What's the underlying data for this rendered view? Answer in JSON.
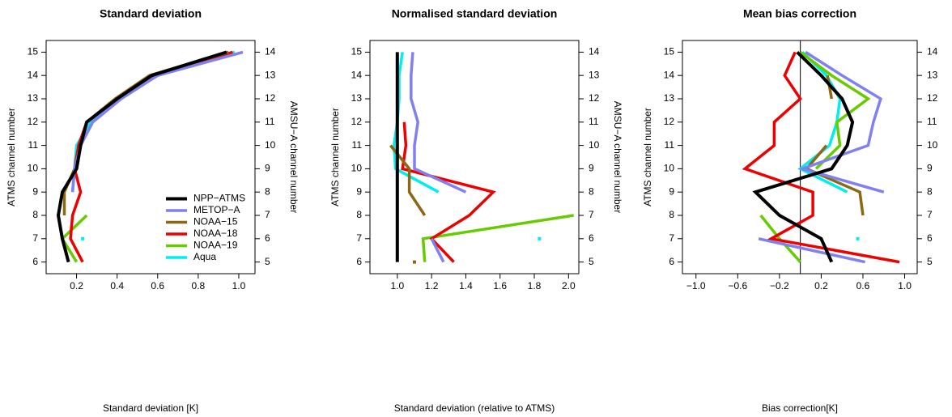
{
  "chart_data": [
    {
      "type": "line",
      "title": "Standard deviation",
      "xlabel": "Standard deviation [K]",
      "ylabel": "ATMS channel number",
      "y2label": "AMSU−A channel number",
      "y": [
        6,
        7,
        8,
        9,
        10,
        11,
        12,
        13,
        14,
        15
      ],
      "xlim": [
        0.05,
        1.08
      ],
      "xticks": [
        0.2,
        0.4,
        0.6,
        0.8,
        {
          "value": 1,
          "label": "1.0"
        }
      ],
      "ylim": [
        5.5,
        15.5
      ],
      "yticks": [
        6,
        7,
        8,
        9,
        10,
        11,
        12,
        13,
        14,
        15
      ],
      "y2lim": [
        4.5,
        14.5
      ],
      "y2ticks": [
        5,
        6,
        7,
        8,
        9,
        10,
        11,
        12,
        13,
        14
      ],
      "legend": "bottomright",
      "series": [
        {
          "name": "NPP−ATMS",
          "color": "#000000",
          "values": [
            0.16,
            0.13,
            0.11,
            0.13,
            0.2,
            0.22,
            0.25,
            0.4,
            0.57,
            0.94
          ]
        },
        {
          "name": "METOP−A",
          "color": "#8080f0",
          "values": [
            null,
            null,
            null,
            0.18,
            0.19,
            0.22,
            0.28,
            0.42,
            0.6,
            1.02
          ]
        },
        {
          "name": "NOAA−15",
          "color": "#8b6914",
          "values": [
            null,
            null,
            0.14,
            0.14,
            0.19,
            0.22,
            0.25,
            0.39,
            0.56,
            0.95
          ]
        },
        {
          "name": "NOAA−18",
          "color": "#ee0000",
          "values": [
            0.23,
            0.17,
            0.18,
            0.22,
            0.19,
            0.21,
            0.25,
            0.4,
            0.58,
            0.97
          ]
        },
        {
          "name": "NOAA−19",
          "color": "#66cc00",
          "values": [
            0.2,
            0.13,
            0.25,
            null,
            null,
            null,
            null,
            null,
            null,
            null
          ]
        },
        {
          "name": "Aqua",
          "color": "#00eeee",
          "values": [
            null,
            0.23,
            null,
            0.18,
            0.19,
            0.2,
            0.27,
            0.41,
            0.6,
            0.98
          ]
        }
      ]
    },
    {
      "type": "line",
      "title": "Normalised standard deviation",
      "xlabel": "Standard deviation (relative to ATMS)",
      "ylabel": "ATMS channel number",
      "y2label": "AMSU−A channel number",
      "y": [
        6,
        7,
        8,
        9,
        10,
        11,
        12,
        13,
        14,
        15
      ],
      "xlim": [
        0.84,
        2.06
      ],
      "xticks": [
        {
          "value": 1,
          "label": "1.0"
        },
        1.2,
        1.4,
        1.6,
        1.8,
        {
          "value": 2,
          "label": "2.0"
        }
      ],
      "ylim": [
        5.5,
        15.5
      ],
      "yticks": [
        6,
        7,
        8,
        9,
        10,
        11,
        12,
        13,
        14,
        15
      ],
      "y2lim": [
        4.5,
        14.5
      ],
      "y2ticks": [
        5,
        6,
        7,
        8,
        9,
        10,
        11,
        12,
        13,
        14
      ],
      "series": [
        {
          "color": "#000000",
          "values": [
            1,
            1,
            1,
            1,
            1,
            1,
            1,
            1,
            1,
            1
          ]
        },
        {
          "color": "#8080f0",
          "values": [
            1.27,
            1.2,
            null,
            1.4,
            1.1,
            1.1,
            1.12,
            1.08,
            1.08,
            1.09
          ]
        },
        {
          "color": "#8b6914",
          "values": [
            1.1,
            null,
            1.16,
            1.07,
            1.07,
            0.96,
            null,
            1.0,
            1.0,
            null
          ]
        },
        {
          "color": "#ee0000",
          "values": [
            1.33,
            1.2,
            1.42,
            1.56,
            1.03,
            1.05,
            1.04,
            null,
            null,
            null
          ]
        },
        {
          "color": "#66cc00",
          "values": [
            1.16,
            1.15,
            2.03,
            null,
            null,
            null,
            null,
            null,
            null,
            null
          ]
        },
        {
          "color": "#00eeee",
          "values": [
            null,
            1.83,
            null,
            1.24,
            0.99,
            0.98,
            1.0,
            1.01,
            1.01,
            1.03
          ]
        }
      ]
    },
    {
      "type": "line",
      "title": "Mean bias correction",
      "xlabel": "Bias correction[K]",
      "ylabel": "ATMS channel number",
      "y2label": "AMSU−A channel number",
      "y": [
        6,
        7,
        8,
        9,
        10,
        11,
        12,
        13,
        14,
        15
      ],
      "xlim": [
        -1.13,
        1.12
      ],
      "xticks": [
        {
          "value": -1,
          "label": "−1.0"
        },
        {
          "value": -0.6,
          "label": "−0.6"
        },
        {
          "value": -0.2,
          "label": "−0.2"
        },
        0.2,
        0.6,
        {
          "value": 1,
          "label": "1.0"
        }
      ],
      "ylim": [
        5.5,
        15.5
      ],
      "yticks": [
        6,
        7,
        8,
        9,
        10,
        11,
        12,
        13,
        14,
        15
      ],
      "y2lim": [
        4.5,
        14.5
      ],
      "y2ticks": [
        5,
        6,
        7,
        8,
        9,
        10,
        11,
        12,
        13,
        14
      ],
      "vline": 0,
      "series": [
        {
          "color": "#000000",
          "values": [
            0.3,
            0.2,
            -0.2,
            -0.43,
            0.3,
            0.45,
            0.5,
            0.4,
            0.2,
            -0.03
          ]
        },
        {
          "color": "#8080f0",
          "values": [
            0.62,
            -0.4,
            null,
            0.8,
            0.02,
            0.65,
            0.7,
            0.77,
            0.4,
            0.05
          ]
        },
        {
          "color": "#8b6914",
          "values": [
            null,
            null,
            0.6,
            0.57,
            0.06,
            0.25,
            null,
            0.3,
            0.26,
            null
          ]
        },
        {
          "color": "#ee0000",
          "values": [
            0.95,
            -0.28,
            0.12,
            0.12,
            -0.53,
            -0.25,
            -0.25,
            0.0,
            -0.15,
            -0.05
          ]
        },
        {
          "color": "#66cc00",
          "values": [
            0.0,
            -0.2,
            -0.38,
            null,
            0.15,
            0.38,
            0.35,
            0.65,
            0.3,
            0.0
          ]
        },
        {
          "color": "#00eeee",
          "values": [
            null,
            0.55,
            null,
            0.45,
            0.0,
            0.28,
            0.35,
            0.38,
            0.25,
            0.02
          ]
        }
      ]
    }
  ]
}
